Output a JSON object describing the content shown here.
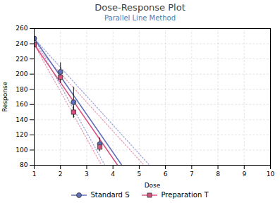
{
  "chart_data": {
    "type": "scatter",
    "title": "Dose-Response Plot",
    "subtitle": "Parallel Line Method",
    "xlabel": "Dose",
    "ylabel": "Response",
    "xlim": [
      1,
      10
    ],
    "ylim": [
      80,
      260
    ],
    "xticks": [
      1,
      2,
      3,
      4,
      5,
      6,
      7,
      8,
      9,
      10
    ],
    "yticks": [
      80,
      100,
      120,
      140,
      160,
      180,
      200,
      220,
      240,
      260
    ],
    "grid": true,
    "legend": "bottom",
    "series": [
      {
        "name": "Standard S",
        "color": "#6070b8",
        "marker": "circle",
        "x": [
          1.0,
          2.0,
          2.5,
          3.5
        ],
        "values": [
          247,
          203,
          163,
          108
        ],
        "errors": [
          8,
          12,
          20,
          8
        ],
        "lines": [
          {
            "x": [
              1,
              10
            ],
            "values": [
              247,
              -95
            ],
            "color": "#a0a8d8",
            "line_style": "dotted"
          },
          {
            "x": [
              1,
              10
            ],
            "values": [
              247,
              -311
            ],
            "color": "#a0a8d8",
            "line_style": "dotted"
          },
          {
            "x": [
              1,
              10
            ],
            "values": [
              247,
              -203
            ],
            "color": "#6070b8",
            "line_style": "solid"
          }
        ]
      },
      {
        "name": "Preparation T",
        "color": "#d85080",
        "marker": "square",
        "x": [
          1.0,
          2.0,
          2.5,
          3.5
        ],
        "values": [
          239,
          196,
          150,
          104
        ],
        "errors": [
          5,
          8,
          8,
          6
        ],
        "lines": [
          {
            "x": [
              1,
              10
            ],
            "values": [
              239,
              -103
            ],
            "color": "#e8a0b8",
            "line_style": "dotted"
          },
          {
            "x": [
              1,
              10
            ],
            "values": [
              239,
              -319
            ],
            "color": "#e8a0b8",
            "line_style": "dotted"
          },
          {
            "x": [
              1,
              10
            ],
            "values": [
              239,
              -211
            ],
            "color": "#d85080",
            "line_style": "solid"
          }
        ]
      }
    ]
  }
}
